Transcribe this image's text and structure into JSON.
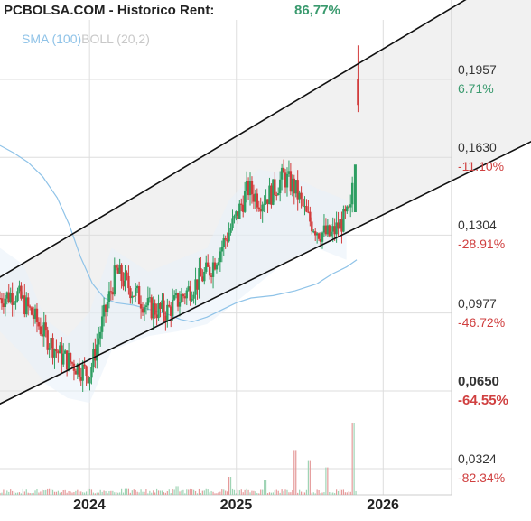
{
  "header": {
    "title": "PCBOLSA.COM - Historico  Rent:",
    "rent_value": "86,77%"
  },
  "legend": {
    "sma": "SMA (100)",
    "boll": "BOLL (20,2)"
  },
  "price_axis": [
    {
      "price": "0,1957",
      "pct": "6.71%",
      "sign": "pos",
      "strong": false
    },
    {
      "price": "0,1630",
      "pct": "-11.10%",
      "sign": "neg",
      "strong": false
    },
    {
      "price": "0,1304",
      "pct": "-28.91%",
      "sign": "neg",
      "strong": false
    },
    {
      "price": "0,0977",
      "pct": "-46.72%",
      "sign": "neg",
      "strong": false
    },
    {
      "price": "0,0650",
      "pct": "-64.55%",
      "sign": "neg",
      "strong": true
    },
    {
      "price": "0,0324",
      "pct": "-82.34%",
      "sign": "neg",
      "strong": false
    }
  ],
  "x_axis": [
    "2024",
    "2025",
    "2026"
  ],
  "colors": {
    "up": "#2e9e62",
    "down": "#d23b3b",
    "sma": "#8fc3e8",
    "channel": "#111111",
    "channel_fill": "#f1f1f1",
    "grid": "#dedede",
    "boll_fill": "#e8f1fa"
  },
  "chart_data": {
    "type": "candlestick",
    "title": "PCBOLSA.COM - Historico",
    "ylim": [
      0.022,
      0.222
    ],
    "y_ticks": [
      0.1957,
      0.163,
      0.1304,
      0.0977,
      0.065,
      0.0324
    ],
    "x_ticks": [
      {
        "label": "2024",
        "t": 2024.0
      },
      {
        "label": "2025",
        "t": 2025.0
      },
      {
        "label": "2026",
        "t": 2026.0
      }
    ],
    "x_range": [
      2023.39,
      2027.05
    ],
    "channel": {
      "upper": [
        [
          2023.37,
          0.112
        ],
        [
          2027.02,
          0.246
        ]
      ],
      "lower": [
        [
          2023.37,
          0.059
        ],
        [
          2027.02,
          0.17
        ]
      ]
    },
    "sma_100": [
      [
        2023.39,
        0.168
      ],
      [
        2023.48,
        0.165
      ],
      [
        2023.58,
        0.161
      ],
      [
        2023.68,
        0.155
      ],
      [
        2023.78,
        0.146
      ],
      [
        2023.86,
        0.135
      ],
      [
        2023.94,
        0.121
      ],
      [
        2024.02,
        0.11
      ],
      [
        2024.1,
        0.104
      ],
      [
        2024.18,
        0.102
      ],
      [
        2024.3,
        0.101
      ],
      [
        2024.42,
        0.099
      ],
      [
        2024.54,
        0.097
      ],
      [
        2024.62,
        0.095
      ],
      [
        2024.7,
        0.094
      ],
      [
        2024.8,
        0.096
      ],
      [
        2024.9,
        0.099
      ],
      [
        2025.0,
        0.102
      ],
      [
        2025.1,
        0.104
      ],
      [
        2025.25,
        0.105
      ],
      [
        2025.4,
        0.107
      ],
      [
        2025.55,
        0.11
      ],
      [
        2025.65,
        0.114
      ],
      [
        2025.75,
        0.117
      ],
      [
        2025.82,
        0.12
      ]
    ],
    "volume_peaks": [
      [
        2024.05,
        0.03
      ],
      [
        2024.25,
        0.08
      ],
      [
        2024.6,
        0.12
      ],
      [
        2024.95,
        0.25
      ],
      [
        2025.2,
        0.2
      ],
      [
        2025.4,
        0.62
      ],
      [
        2025.5,
        0.48
      ],
      [
        2025.62,
        0.38
      ],
      [
        2025.8,
        1.0
      ]
    ],
    "last_close": 0.19,
    "rent_pct": 86.77
  }
}
